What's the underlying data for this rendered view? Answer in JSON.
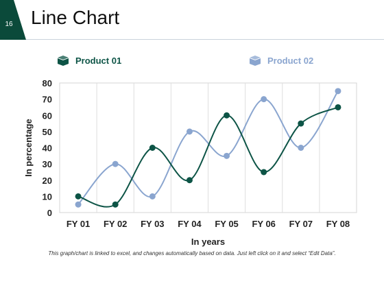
{
  "slide": {
    "number": "16",
    "title": "Line Chart",
    "accent_color": "#0b4a3a"
  },
  "legend": [
    {
      "label": "Product 01",
      "color": "#0d5446",
      "icon": "box-icon"
    },
    {
      "label": "Product 02",
      "color": "#8aa5cf",
      "icon": "box-icon"
    }
  ],
  "chart_data": {
    "type": "line",
    "categories": [
      "FY 01",
      "FY 02",
      "FY 03",
      "FY 04",
      "FY 05",
      "FY 06",
      "FY 07",
      "FY 08"
    ],
    "series": [
      {
        "name": "Product 01",
        "color": "#0d5446",
        "values": [
          10,
          5,
          40,
          20,
          60,
          25,
          55,
          65
        ]
      },
      {
        "name": "Product 02",
        "color": "#8aa5cf",
        "values": [
          5,
          30,
          10,
          50,
          35,
          70,
          40,
          75
        ]
      }
    ],
    "xlabel": "In years",
    "ylabel": "In percentage",
    "ylim": [
      0,
      80
    ],
    "yticks": [
      0,
      10,
      20,
      30,
      40,
      50,
      60,
      70,
      80
    ],
    "grid": "vertical",
    "legend_position": "top"
  },
  "footnote": "This graph/chart is linked to excel, and changes automatically based on data. Just left click on it and select “Edit Data”."
}
